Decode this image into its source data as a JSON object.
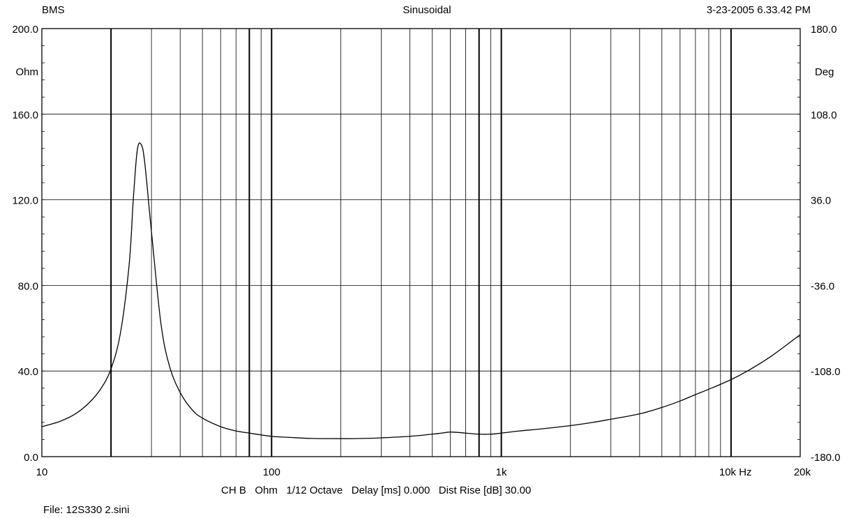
{
  "header": {
    "left": "BMS",
    "center": "Sinusoidal",
    "right": "3-23-2005 6.33.42 PM"
  },
  "footer": {
    "info": "CH B   Ohm   1/12 Octave   Delay [ms] 0.000   Dist Rise [dB] 30.00",
    "file": "File: 12S330 2.sini"
  },
  "chart_data": {
    "type": "line",
    "x_scale": "log",
    "xlim": [
      10,
      20000
    ],
    "x_tick_labels": [
      {
        "value": 10,
        "label": "10"
      },
      {
        "value": 100,
        "label": "100"
      },
      {
        "value": 1000,
        "label": "1k"
      },
      {
        "value": 10000,
        "label": "10k  Hz"
      },
      {
        "value": 20000,
        "label": "20k"
      }
    ],
    "x_major_gridlines": [
      20,
      80,
      100,
      800,
      1000,
      10000
    ],
    "y_left": {
      "unit": "Ohm",
      "lim": [
        0,
        200
      ],
      "ticks": [
        {
          "value": 0,
          "label": "0.0"
        },
        {
          "value": 40,
          "label": "40.0"
        },
        {
          "value": 80,
          "label": "80.0"
        },
        {
          "value": 120,
          "label": "120.0"
        },
        {
          "value": 160,
          "label": "160.0"
        },
        {
          "value": 200,
          "label": "200.0"
        }
      ]
    },
    "y_right": {
      "unit": "Deg",
      "lim": [
        -180,
        180
      ],
      "tick_labels": [
        "-180.0",
        "-108.0",
        "-36.0",
        "36.0",
        "108.0",
        "180.0"
      ]
    },
    "grid": true,
    "series": [
      {
        "x": [
          10,
          12,
          14,
          16,
          18,
          20,
          22,
          24,
          25,
          26,
          27,
          28,
          30,
          33,
          36,
          40,
          45,
          50,
          60,
          70,
          80,
          100,
          120,
          150,
          200,
          250,
          300,
          400,
          500,
          550,
          600,
          700,
          800,
          900,
          1000,
          1200,
          1500,
          2000,
          2500,
          3000,
          4000,
          5000,
          6000,
          7000,
          8000,
          10000,
          12000,
          15000,
          20000
        ],
        "y": [
          14,
          16.5,
          20,
          25,
          31.5,
          41,
          58,
          90,
          120,
          143,
          146,
          138,
          105,
          62,
          42,
          30,
          22,
          18,
          14,
          12,
          11,
          9.5,
          9,
          8.5,
          8.4,
          8.5,
          8.8,
          9.5,
          10.5,
          11,
          11.5,
          11,
          10.5,
          10.5,
          11,
          12,
          13,
          14.5,
          16,
          17.5,
          20,
          23,
          26,
          29,
          31.5,
          36,
          40.5,
          47,
          57
        ]
      }
    ]
  }
}
